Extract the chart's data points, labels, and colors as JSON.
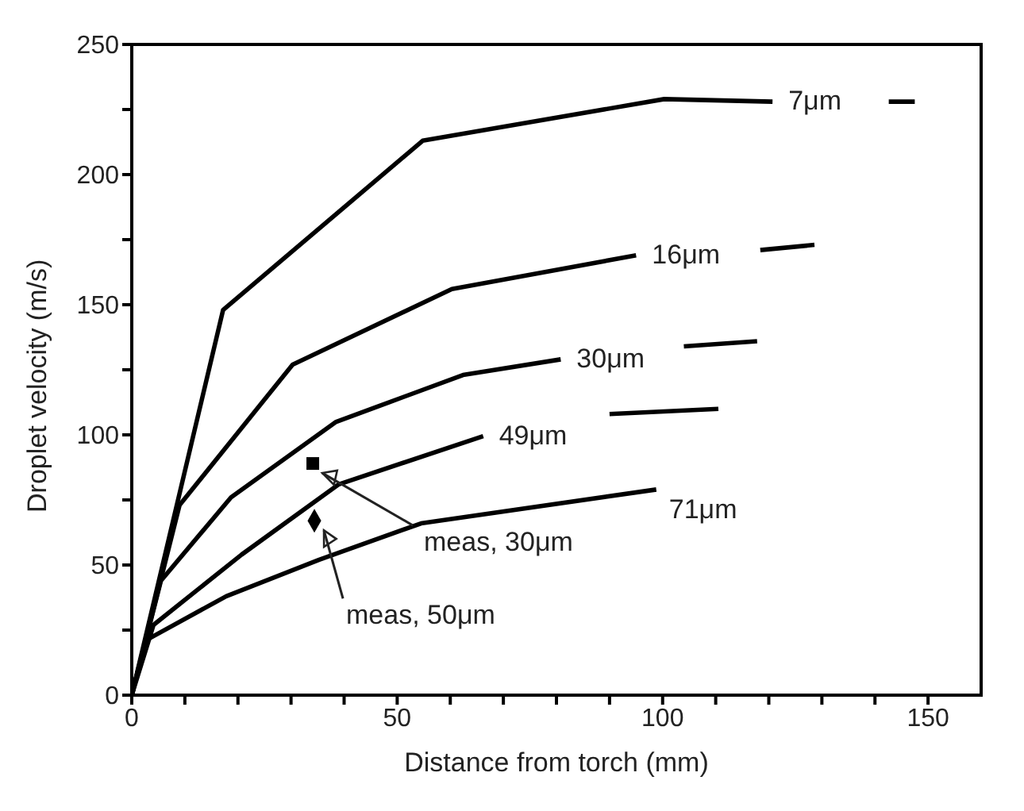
{
  "chart_data": {
    "type": "line",
    "xlabel": "Distance from torch (mm)",
    "ylabel": "Droplet velocity (m/s)",
    "xlim": [
      0,
      160
    ],
    "ylim": [
      0,
      250
    ],
    "xticks": [
      0,
      {
        "value": 10,
        "label": null
      },
      {
        "value": 20,
        "label": null
      },
      {
        "value": 30,
        "label": null
      },
      {
        "value": 40,
        "label": null
      },
      50,
      {
        "value": 60,
        "label": null
      },
      {
        "value": 70,
        "label": null
      },
      {
        "value": 80,
        "label": null
      },
      {
        "value": 90,
        "label": null
      },
      100,
      {
        "value": 110,
        "label": null
      },
      {
        "value": 120,
        "label": null
      },
      {
        "value": 130,
        "label": null
      },
      {
        "value": 140,
        "label": null
      },
      150
    ],
    "yticks": [
      0,
      {
        "value": 25,
        "label": null
      },
      50,
      {
        "value": 75,
        "label": null
      },
      100,
      {
        "value": 125,
        "label": null
      },
      150,
      {
        "value": 175,
        "label": null
      },
      200,
      {
        "value": 225,
        "label": null
      },
      250
    ],
    "grid": false,
    "legend": false,
    "line_style": "solid",
    "marker": "none",
    "series": [
      {
        "name": "7μm",
        "color": "#000000",
        "x": [
          0,
          17.2,
          54.8,
          100.3,
          120.7,
          130,
          142.6,
          147.5
        ],
        "values": [
          0,
          148,
          213,
          229,
          228,
          null,
          228,
          228
        ]
      },
      {
        "name": "16μm",
        "color": "#000000",
        "x": [
          0,
          9,
          30.3,
          60.3,
          95,
          105,
          118.4,
          128.6
        ],
        "values": [
          0,
          73,
          127,
          156,
          169,
          null,
          171,
          173
        ]
      },
      {
        "name": "30μm",
        "color": "#000000",
        "x": [
          0,
          5.5,
          18.7,
          38.5,
          62.4,
          80.8,
          92,
          104,
          117.8
        ],
        "values": [
          0,
          44,
          76,
          105,
          123,
          129,
          null,
          134,
          136
        ]
      },
      {
        "name": "49μm",
        "color": "#000000",
        "x": [
          0,
          4.1,
          20.7,
          39,
          66.2,
          78,
          90,
          110.5
        ],
        "values": [
          0,
          27,
          54,
          81,
          99.5,
          null,
          108,
          110
        ]
      },
      {
        "name": "71μm",
        "color": "#000000",
        "x": [
          0,
          2.6,
          17.8,
          35.3,
          54.5,
          98.8
        ],
        "values": [
          0,
          21,
          38,
          52,
          66,
          79
        ]
      },
      {
        "type": "scatter",
        "marker": "square",
        "color": "#000000",
        "x": [
          34.1
        ],
        "values": [
          89
        ]
      },
      {
        "type": "scatter",
        "marker": "diamond",
        "color": "#000000",
        "x": [
          34.4
        ],
        "values": [
          67
        ]
      }
    ],
    "annotations": [
      {
        "text": "meas, 30μm",
        "x": 34.1,
        "y": 89
      },
      {
        "text": "meas, 50μm",
        "x": 34.4,
        "y": 67
      }
    ]
  }
}
